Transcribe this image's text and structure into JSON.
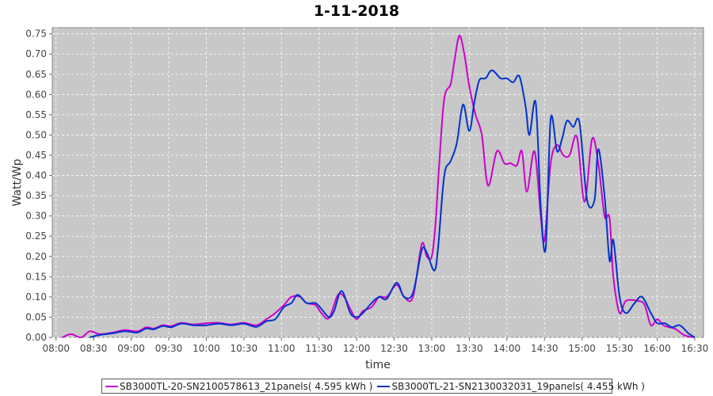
{
  "chart_data": {
    "type": "line",
    "title": "1-11-2018",
    "xlabel": "time",
    "ylabel": "Watt/Wp",
    "x_ticks": [
      "08:00",
      "08:30",
      "09:00",
      "09:30",
      "10:00",
      "10:30",
      "11:00",
      "11:30",
      "12:00",
      "12:30",
      "13:00",
      "13:30",
      "14:00",
      "14:30",
      "15:00",
      "15:30",
      "16:00",
      "16:30"
    ],
    "y_ticks": [
      "0.00",
      "0.05",
      "0.10",
      "0.15",
      "0.20",
      "0.25",
      "0.30",
      "0.35",
      "0.40",
      "0.45",
      "0.50",
      "0.55",
      "0.60",
      "0.65",
      "0.70",
      "0.75"
    ],
    "xlim": [
      "07:57",
      "16:37"
    ],
    "ylim": [
      0,
      0.765
    ],
    "grid": true,
    "legend_position": "bottom",
    "series": [
      {
        "name": "SB3000TL-20-SN2100578613_21panels( 4.595 kWh )",
        "color": "#cc00cc",
        "points": [
          [
            "08:05",
            0.0
          ],
          [
            "08:12",
            0.008
          ],
          [
            "08:20",
            0.0
          ],
          [
            "08:27",
            0.015
          ],
          [
            "08:35",
            0.008
          ],
          [
            "08:45",
            0.012
          ],
          [
            "08:55",
            0.018
          ],
          [
            "09:05",
            0.015
          ],
          [
            "09:12",
            0.025
          ],
          [
            "09:18",
            0.022
          ],
          [
            "09:25",
            0.03
          ],
          [
            "09:32",
            0.028
          ],
          [
            "09:40",
            0.036
          ],
          [
            "09:50",
            0.032
          ],
          [
            "10:00",
            0.035
          ],
          [
            "10:10",
            0.036
          ],
          [
            "10:20",
            0.032
          ],
          [
            "10:30",
            0.036
          ],
          [
            "10:40",
            0.03
          ],
          [
            "10:48",
            0.045
          ],
          [
            "10:55",
            0.06
          ],
          [
            "11:02",
            0.08
          ],
          [
            "11:08",
            0.1
          ],
          [
            "11:15",
            0.1
          ],
          [
            "11:20",
            0.085
          ],
          [
            "11:27",
            0.08
          ],
          [
            "11:32",
            0.06
          ],
          [
            "11:38",
            0.048
          ],
          [
            "11:45",
            0.105
          ],
          [
            "11:50",
            0.1
          ],
          [
            "11:55",
            0.07
          ],
          [
            "12:00",
            0.045
          ],
          [
            "12:05",
            0.065
          ],
          [
            "12:12",
            0.075
          ],
          [
            "12:18",
            0.1
          ],
          [
            "12:24",
            0.1
          ],
          [
            "12:32",
            0.13
          ],
          [
            "12:38",
            0.1
          ],
          [
            "12:45",
            0.1
          ],
          [
            "12:52",
            0.23
          ],
          [
            "12:56",
            0.2
          ],
          [
            "13:00",
            0.2
          ],
          [
            "13:03",
            0.28
          ],
          [
            "13:06",
            0.43
          ],
          [
            "13:10",
            0.59
          ],
          [
            "13:15",
            0.625
          ],
          [
            "13:18",
            0.68
          ],
          [
            "13:22",
            0.745
          ],
          [
            "13:26",
            0.7
          ],
          [
            "13:30",
            0.62
          ],
          [
            "13:35",
            0.55
          ],
          [
            "13:40",
            0.5
          ],
          [
            "13:45",
            0.375
          ],
          [
            "13:52",
            0.46
          ],
          [
            "13:58",
            0.43
          ],
          [
            "14:03",
            0.43
          ],
          [
            "14:08",
            0.425
          ],
          [
            "14:12",
            0.46
          ],
          [
            "14:16",
            0.36
          ],
          [
            "14:22",
            0.46
          ],
          [
            "14:27",
            0.3
          ],
          [
            "14:30",
            0.24
          ],
          [
            "14:35",
            0.43
          ],
          [
            "14:40",
            0.475
          ],
          [
            "14:45",
            0.45
          ],
          [
            "14:50",
            0.45
          ],
          [
            "14:56",
            0.495
          ],
          [
            "15:02",
            0.335
          ],
          [
            "15:08",
            0.49
          ],
          [
            "15:13",
            0.43
          ],
          [
            "15:18",
            0.3
          ],
          [
            "15:22",
            0.295
          ],
          [
            "15:25",
            0.15
          ],
          [
            "15:30",
            0.06
          ],
          [
            "15:35",
            0.09
          ],
          [
            "15:45",
            0.09
          ],
          [
            "15:50",
            0.08
          ],
          [
            "15:55",
            0.03
          ],
          [
            "16:00",
            0.045
          ],
          [
            "16:05",
            0.03
          ],
          [
            "16:10",
            0.025
          ],
          [
            "16:15",
            0.02
          ],
          [
            "16:22",
            0.005
          ],
          [
            "16:30",
            0.0
          ]
        ]
      },
      {
        "name": "SB3000TL-21-SN2130032031_19panels( 4.455 kWh )",
        "color": "#0033cc",
        "points": [
          [
            "08:27",
            0.0
          ],
          [
            "08:35",
            0.006
          ],
          [
            "08:45",
            0.01
          ],
          [
            "08:55",
            0.015
          ],
          [
            "09:05",
            0.012
          ],
          [
            "09:12",
            0.022
          ],
          [
            "09:18",
            0.02
          ],
          [
            "09:25",
            0.028
          ],
          [
            "09:32",
            0.025
          ],
          [
            "09:40",
            0.034
          ],
          [
            "09:50",
            0.03
          ],
          [
            "10:00",
            0.03
          ],
          [
            "10:10",
            0.034
          ],
          [
            "10:20",
            0.03
          ],
          [
            "10:30",
            0.034
          ],
          [
            "10:40",
            0.026
          ],
          [
            "10:48",
            0.04
          ],
          [
            "10:55",
            0.045
          ],
          [
            "11:02",
            0.075
          ],
          [
            "11:08",
            0.085
          ],
          [
            "11:13",
            0.105
          ],
          [
            "11:20",
            0.085
          ],
          [
            "11:27",
            0.085
          ],
          [
            "11:32",
            0.07
          ],
          [
            "11:38",
            0.05
          ],
          [
            "11:42",
            0.065
          ],
          [
            "11:48",
            0.115
          ],
          [
            "11:55",
            0.06
          ],
          [
            "12:00",
            0.05
          ],
          [
            "12:05",
            0.06
          ],
          [
            "12:12",
            0.085
          ],
          [
            "12:18",
            0.1
          ],
          [
            "12:24",
            0.095
          ],
          [
            "12:32",
            0.135
          ],
          [
            "12:38",
            0.1
          ],
          [
            "12:45",
            0.11
          ],
          [
            "12:52",
            0.215
          ],
          [
            "12:56",
            0.21
          ],
          [
            "13:02",
            0.165
          ],
          [
            "13:05",
            0.22
          ],
          [
            "13:10",
            0.4
          ],
          [
            "13:15",
            0.435
          ],
          [
            "13:20",
            0.48
          ],
          [
            "13:25",
            0.575
          ],
          [
            "13:30",
            0.51
          ],
          [
            "13:34",
            0.58
          ],
          [
            "13:38",
            0.635
          ],
          [
            "13:43",
            0.64
          ],
          [
            "13:48",
            0.66
          ],
          [
            "13:55",
            0.64
          ],
          [
            "14:00",
            0.64
          ],
          [
            "14:05",
            0.63
          ],
          [
            "14:10",
            0.645
          ],
          [
            "14:15",
            0.57
          ],
          [
            "14:18",
            0.5
          ],
          [
            "14:23",
            0.58
          ],
          [
            "14:27",
            0.325
          ],
          [
            "14:31",
            0.22
          ],
          [
            "14:35",
            0.54
          ],
          [
            "14:40",
            0.46
          ],
          [
            "14:44",
            0.49
          ],
          [
            "14:48",
            0.535
          ],
          [
            "14:53",
            0.52
          ],
          [
            "14:58",
            0.53
          ],
          [
            "15:04",
            0.34
          ],
          [
            "15:10",
            0.34
          ],
          [
            "15:13",
            0.465
          ],
          [
            "15:18",
            0.35
          ],
          [
            "15:22",
            0.19
          ],
          [
            "15:25",
            0.24
          ],
          [
            "15:30",
            0.1
          ],
          [
            "15:35",
            0.06
          ],
          [
            "15:42",
            0.085
          ],
          [
            "15:48",
            0.1
          ],
          [
            "15:55",
            0.06
          ],
          [
            "16:00",
            0.035
          ],
          [
            "16:06",
            0.035
          ],
          [
            "16:12",
            0.025
          ],
          [
            "16:18",
            0.03
          ],
          [
            "16:25",
            0.01
          ],
          [
            "16:30",
            0.0
          ]
        ]
      }
    ]
  }
}
